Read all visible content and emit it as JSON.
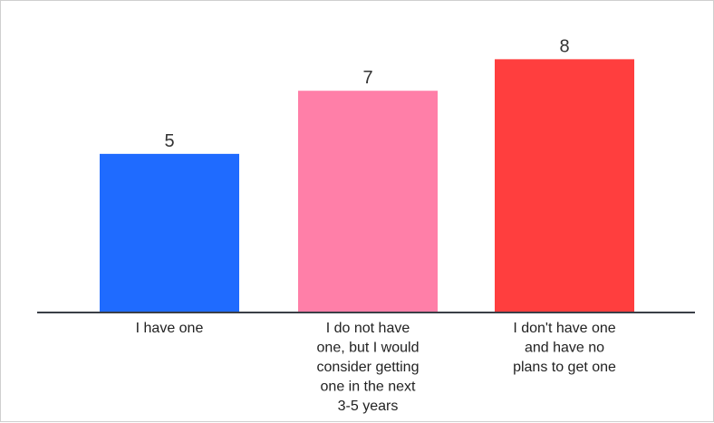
{
  "chart_data": {
    "type": "bar",
    "title": "",
    "xlabel": "",
    "ylabel": "",
    "ylim": [
      0,
      8.7
    ],
    "grid": false,
    "legend": "none",
    "categories": [
      [
        "I have one"
      ],
      [
        "I do not have",
        "one, but I would",
        "consider getting",
        "one in the next",
        "3-5 years"
      ],
      [
        "I don't have one",
        "and have no",
        "plans to get one"
      ]
    ],
    "values": [
      5,
      7,
      8
    ],
    "colors": [
      "#1f6bff",
      "#ff7fa8",
      "#ff3e3e"
    ],
    "axis_color": "#3a3f47"
  }
}
